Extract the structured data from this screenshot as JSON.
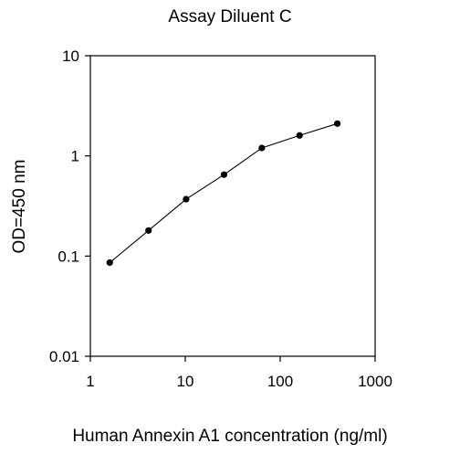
{
  "chart_data": {
    "type": "line",
    "title": "Assay Diluent C",
    "xlabel": "Human Annexin A1 concentration (ng/ml)",
    "ylabel": "OD=450 nm",
    "xscale": "log",
    "yscale": "log",
    "xlim": [
      1,
      1000
    ],
    "ylim": [
      0.01,
      10
    ],
    "xticks": [
      "1",
      "10",
      "100",
      "1000"
    ],
    "yticks": [
      "0.01",
      "0.1",
      "1",
      "10"
    ],
    "grid": false,
    "legend": "none",
    "colors": {
      "line": "#000000",
      "marker": "#000000"
    },
    "series": [
      {
        "x": [
          1.6,
          4.1,
          10.2,
          25.6,
          64,
          160,
          400
        ],
        "y": [
          0.086,
          0.18,
          0.37,
          0.65,
          1.2,
          1.6,
          2.1
        ]
      }
    ]
  }
}
